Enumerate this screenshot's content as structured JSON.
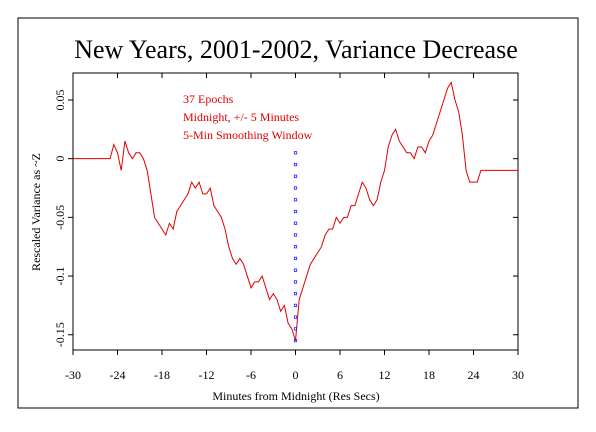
{
  "chart_data": {
    "type": "line",
    "title": "New Years, 2001-2002, Variance Decrease",
    "xlabel": "Minutes from Midnight (Res Secs)",
    "ylabel": "Rescaled Variance as ~Z",
    "annotations": [
      "37 Epochs",
      "Midnight, +/- 5 Minutes",
      "5-Min Smoothing Window"
    ],
    "annotation_color": "#e00000",
    "xlim": [
      -30,
      30
    ],
    "xticks": [
      -30,
      -24,
      -18,
      -12,
      -6,
      0,
      6,
      12,
      18,
      24,
      30
    ],
    "ylim": [
      -0.163,
      0.073
    ],
    "yticks": [
      0.05,
      0,
      -0.05,
      -0.1,
      -0.15
    ],
    "series": [
      {
        "color": "#e00000",
        "style": "line",
        "x": [
          -30,
          -25,
          -24.5,
          -24,
          -23.5,
          -23,
          -22.5,
          -22,
          -21.5,
          -21,
          -20.5,
          -20,
          -19.5,
          -19,
          -18.5,
          -18,
          -17.5,
          -17,
          -16.5,
          -16,
          -15.5,
          -15,
          -14.5,
          -14,
          -13.5,
          -13,
          -12.5,
          -12,
          -11.5,
          -11,
          -10.5,
          -10,
          -9.5,
          -9,
          -8.5,
          -8,
          -7.5,
          -7,
          -6.5,
          -6,
          -5.5,
          -5,
          -4.5,
          -4,
          -3.5,
          -3,
          -2.5,
          -2,
          -1.5,
          -1,
          -0.5,
          0,
          0.5,
          1,
          1.5,
          2,
          2.5,
          3,
          3.5,
          4,
          4.5,
          5,
          5.5,
          6,
          6.5,
          7,
          7.5,
          8,
          8.5,
          9,
          9.5,
          10,
          10.5,
          11,
          11.5,
          12,
          12.5,
          13,
          13.5,
          14,
          14.5,
          15,
          15.5,
          16,
          16.5,
          17,
          17.5,
          18,
          18.5,
          19,
          19.5,
          20,
          20.5,
          21,
          21.5,
          22,
          22.5,
          23,
          23.5,
          24,
          24.5,
          25,
          30
        ],
        "values": [
          0,
          0,
          0.012,
          0.005,
          -0.01,
          0.015,
          0.005,
          0,
          0.005,
          0.005,
          0,
          -0.01,
          -0.03,
          -0.05,
          -0.055,
          -0.06,
          -0.065,
          -0.055,
          -0.06,
          -0.045,
          -0.04,
          -0.035,
          -0.03,
          -0.02,
          -0.025,
          -0.02,
          -0.03,
          -0.03,
          -0.025,
          -0.04,
          -0.045,
          -0.05,
          -0.06,
          -0.075,
          -0.085,
          -0.09,
          -0.085,
          -0.09,
          -0.1,
          -0.11,
          -0.105,
          -0.105,
          -0.1,
          -0.11,
          -0.12,
          -0.115,
          -0.12,
          -0.13,
          -0.125,
          -0.14,
          -0.145,
          -0.155,
          -0.12,
          -0.11,
          -0.1,
          -0.09,
          -0.085,
          -0.08,
          -0.075,
          -0.065,
          -0.06,
          -0.06,
          -0.05,
          -0.055,
          -0.05,
          -0.05,
          -0.04,
          -0.04,
          -0.03,
          -0.02,
          -0.025,
          -0.035,
          -0.04,
          -0.035,
          -0.02,
          -0.01,
          0.01,
          0.02,
          0.025,
          0.015,
          0.01,
          0.005,
          0.005,
          0,
          0.01,
          0.01,
          0.005,
          0.015,
          0.02,
          0.03,
          0.04,
          0.05,
          0.06,
          0.065,
          0.05,
          0.04,
          0.02,
          -0.01,
          -0.02,
          -0.02,
          -0.02,
          -0.01,
          -0.01
        ]
      },
      {
        "color": "#2020ff",
        "style": "dots",
        "x": [
          0,
          0,
          0,
          0,
          0,
          0,
          0,
          0,
          0,
          0,
          0,
          0,
          0,
          0,
          0,
          0,
          0
        ],
        "values": [
          0.005,
          -0.005,
          -0.015,
          -0.025,
          -0.035,
          -0.045,
          -0.055,
          -0.065,
          -0.075,
          -0.085,
          -0.095,
          -0.105,
          -0.115,
          -0.125,
          -0.135,
          -0.145,
          -0.155
        ]
      }
    ]
  }
}
